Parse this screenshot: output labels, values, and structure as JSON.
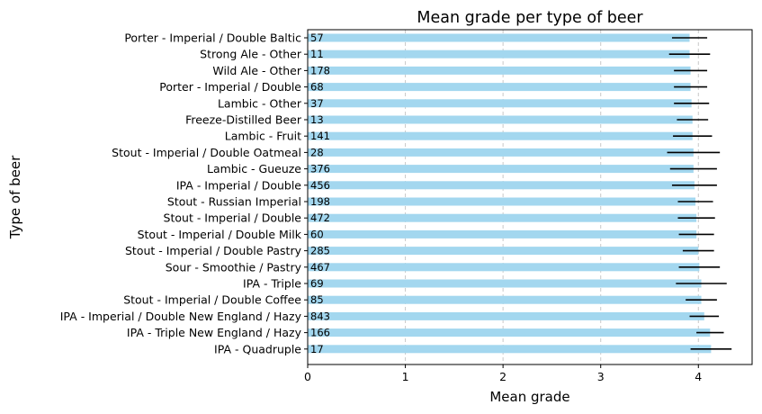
{
  "chart_data": {
    "type": "bar",
    "orientation": "horizontal",
    "title": "Mean grade per type of beer",
    "xlabel": "Mean grade",
    "ylabel": "Type of beer",
    "xlim": [
      0,
      4.55
    ],
    "xticks": [
      "0",
      "1",
      "2",
      "3",
      "4"
    ],
    "grid": "x, dashed",
    "bar_color": "#a3d7ef",
    "error_color": "#000000",
    "categories": [
      "Porter - Imperial / Double Baltic",
      "Strong Ale - Other",
      "Wild Ale - Other",
      "Porter - Imperial / Double",
      "Lambic - Other",
      "Freeze-Distilled Beer",
      "Lambic - Fruit",
      "Stout - Imperial / Double Oatmeal",
      "Lambic - Gueuze",
      "IPA - Imperial / Double",
      "Stout - Russian Imperial",
      "Stout - Imperial / Double",
      "Stout - Imperial / Double Milk",
      "Stout - Imperial / Double Pastry",
      "Sour - Smoothie / Pastry",
      "IPA - Triple",
      "Stout - Imperial / Double Coffee",
      "IPA - Imperial / Double New England / Hazy",
      "IPA - Triple New England / Hazy",
      "IPA - Quadruple"
    ],
    "values": [
      3.91,
      3.91,
      3.92,
      3.92,
      3.93,
      3.94,
      3.94,
      3.95,
      3.95,
      3.96,
      3.97,
      3.98,
      3.98,
      4.0,
      4.01,
      4.03,
      4.03,
      4.06,
      4.12,
      4.13
    ],
    "errors": [
      0.18,
      0.21,
      0.17,
      0.17,
      0.18,
      0.16,
      0.2,
      0.27,
      0.24,
      0.23,
      0.18,
      0.19,
      0.18,
      0.16,
      0.21,
      0.26,
      0.16,
      0.15,
      0.14,
      0.21
    ],
    "counts": [
      "57",
      "11",
      "178",
      "68",
      "37",
      "13",
      "141",
      "28",
      "376",
      "456",
      "198",
      "472",
      "60",
      "285",
      "467",
      "69",
      "85",
      "843",
      "166",
      "17"
    ]
  }
}
